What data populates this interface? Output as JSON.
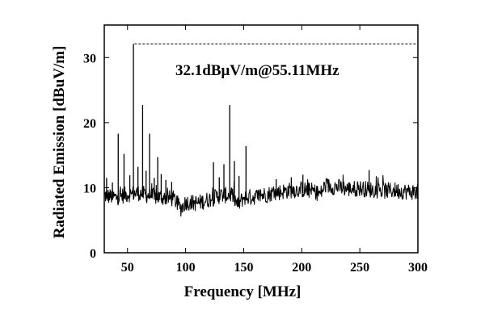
{
  "chart_data": {
    "type": "line",
    "title": "",
    "xlabel": "Frequency [MHz]",
    "ylabel": "Radiated Emission [dBuV/m]",
    "xlim": [
      30,
      300
    ],
    "ylim": [
      0,
      35
    ],
    "xticks": [
      50,
      100,
      150,
      200,
      250,
      300
    ],
    "yticks": [
      0,
      10,
      20,
      30
    ],
    "grid": false,
    "series": [
      {
        "style": "noise-floor",
        "x": [
          30,
          40,
          50,
          60,
          70,
          80,
          90,
          96,
          100,
          110,
          120,
          130,
          140,
          145,
          150,
          160,
          170,
          180,
          190,
          200,
          210,
          216,
          220,
          230,
          240,
          250,
          260,
          270,
          280,
          290,
          300
        ],
        "y": [
          8.8,
          8.5,
          9.0,
          9.2,
          8.7,
          8.5,
          8.3,
          6.8,
          7.8,
          7.6,
          8.2,
          8.8,
          8.9,
          7.3,
          8.5,
          8.6,
          9.0,
          9.3,
          9.6,
          9.7,
          9.5,
          9.0,
          10.3,
          10.1,
          9.8,
          9.9,
          9.7,
          9.5,
          9.6,
          9.4,
          9.3
        ]
      },
      {
        "style": "spikes",
        "x": [
          32,
          37,
          42,
          47,
          52,
          55.11,
          59,
          63,
          66,
          69,
          73,
          76,
          79,
          83,
          88,
          124,
          129,
          133,
          138,
          142,
          146,
          152,
          178,
          191,
          201,
          258
        ],
        "y": [
          11.5,
          10.8,
          18.3,
          15.2,
          11.9,
          32.1,
          13.2,
          22.7,
          12.6,
          18.3,
          11.5,
          14.7,
          12.1,
          11.2,
          10.9,
          13.9,
          11.6,
          13.6,
          22.7,
          14.1,
          11.8,
          16.4,
          11.3,
          11.6,
          12.0,
          12.7
        ]
      }
    ],
    "reference_line": {
      "y": 32.1,
      "style": "dashed"
    },
    "annotations": [
      {
        "text": "32.1dBμV/m@55.11MHz"
      }
    ]
  }
}
